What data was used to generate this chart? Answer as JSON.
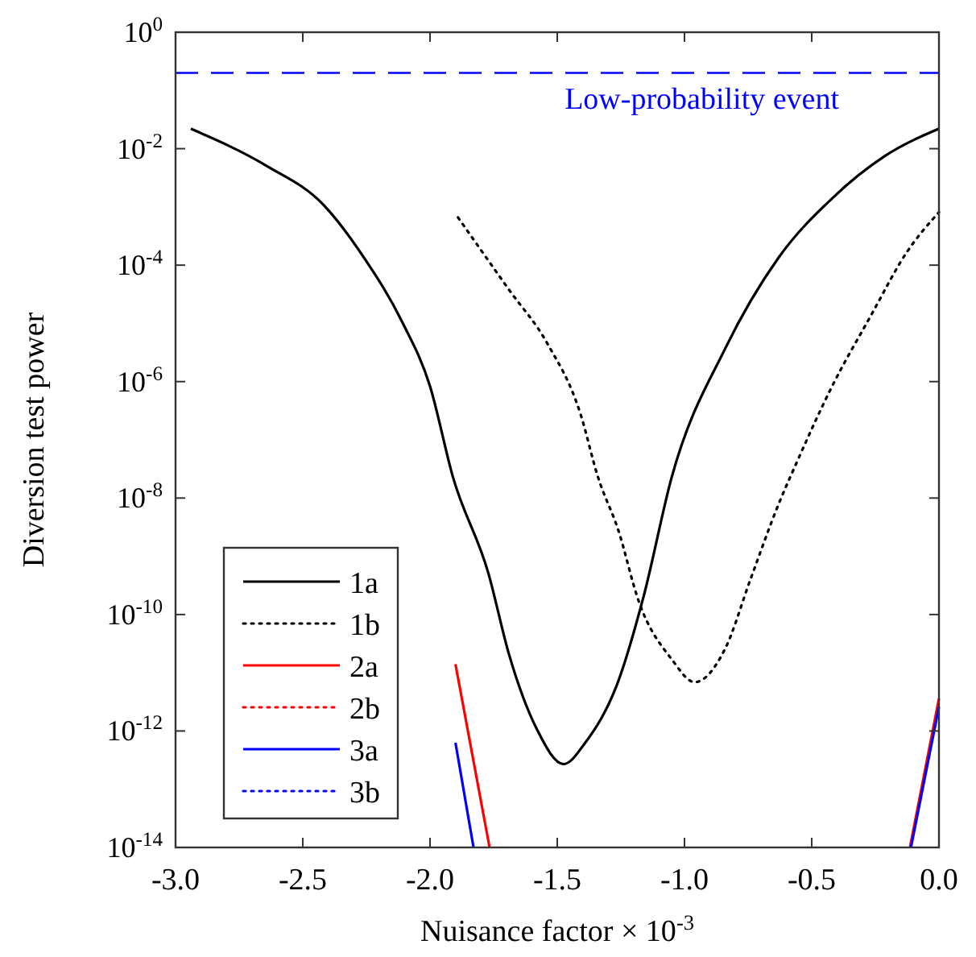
{
  "chart_data": {
    "type": "line",
    "xlabel": "Nuisance factor × 10$^{-3}$",
    "ylabel": "Diversion test power",
    "log": "y",
    "xlim": [
      -3,
      0
    ],
    "xticks": [
      {
        "value": -3,
        "label": "-3.0"
      },
      {
        "value": -2.5,
        "label": "-2.5"
      },
      {
        "value": -2,
        "label": "-2.0"
      },
      {
        "value": -1.5,
        "label": "-1.5"
      },
      {
        "value": -1,
        "label": "-1.0"
      },
      {
        "value": -0.5,
        "label": "-0.5"
      },
      {
        "value": 0,
        "label": "0.0"
      }
    ],
    "ylim": [
      1e-14,
      1
    ],
    "yticks": [
      {
        "value": 1,
        "label": "10$^{0}$"
      },
      {
        "value": 0.01,
        "label": "10$^{-2}$"
      },
      {
        "value": 0.0001,
        "label": "10$^{-4}$"
      },
      {
        "value": 1e-06,
        "label": "10$^{-6}$"
      },
      {
        "value": 1e-08,
        "label": "10$^{-8}$"
      },
      {
        "value": 1e-10,
        "label": "10$^{-10}$"
      },
      {
        "value": 1e-12,
        "label": "10$^{-12}$"
      },
      {
        "value": 1e-14,
        "label": "10$^{-14}$"
      }
    ],
    "grid": false,
    "legend": "bottom left",
    "marker": "none",
    "series": [
      {
        "name": "1a",
        "color": "#000000",
        "line_style": "solid",
        "x": [
          -2.94,
          -2.64,
          -2.42,
          -2.26,
          -2.11,
          -2.0,
          -1.91,
          -1.77,
          -1.69,
          -1.58,
          -1.475,
          -1.39,
          -1.26,
          -1.16,
          -1.05,
          -0.84,
          -0.63,
          -0.42,
          -0.21,
          0
        ],
        "values": [
          0.022,
          0.005,
          0.0011,
          0.000135,
          1.07e-05,
          8.3e-07,
          2.3e-08,
          5e-10,
          2.1e-11,
          1.07e-12,
          2.7e-13,
          6.3e-13,
          7.2e-12,
          2.1e-10,
          2.3e-08,
          3.7e-06,
          0.000135,
          0.0014,
          0.0076,
          0.022
        ]
      },
      {
        "name": "1b",
        "color": "#000000",
        "line_style": "dotted",
        "x": [
          -1.89,
          -1.69,
          -1.54,
          -1.41,
          -1.34,
          -1.26,
          -1.18,
          -1.05,
          -0.96,
          -0.84,
          -0.74,
          -0.63,
          -0.56,
          -0.42,
          -0.27,
          -0.125,
          0
        ],
        "values": [
          0.00066,
          3.8e-05,
          4.6e-06,
          2.9e-07,
          2.3e-08,
          2.8e-09,
          1.7e-10,
          1.7e-11,
          6.9e-12,
          2.6e-11,
          4.1e-10,
          7.9e-09,
          4e-08,
          8.3e-07,
          1.3e-05,
          0.00017,
          0.00081
        ]
      },
      {
        "name": "2a",
        "color": "#ff0000",
        "line_style": "solid",
        "x": [
          -1.9,
          -1.766,
          -1,
          -0.114,
          0
        ],
        "values": [
          1.4e-11,
          1e-14,
          null,
          1e-14,
          3.6e-12
        ]
      },
      {
        "name": "2b",
        "color": "#ff0000",
        "line_style": "dotted"
      },
      {
        "name": "3a",
        "color": "#0000ff",
        "line_style": "solid",
        "x": [
          -1.9,
          -1.829,
          -1,
          -0.11,
          0
        ],
        "values": [
          6.3e-13,
          1e-14,
          null,
          1e-14,
          2.6e-12
        ]
      },
      {
        "name": "3b",
        "color": "#0000ff",
        "line_style": "dotted"
      }
    ],
    "ref_lines": [
      {
        "axis": "y",
        "value": 0.2,
        "label": "Low-probability event",
        "color": "#0000ff",
        "line_style": "dashed"
      }
    ]
  }
}
